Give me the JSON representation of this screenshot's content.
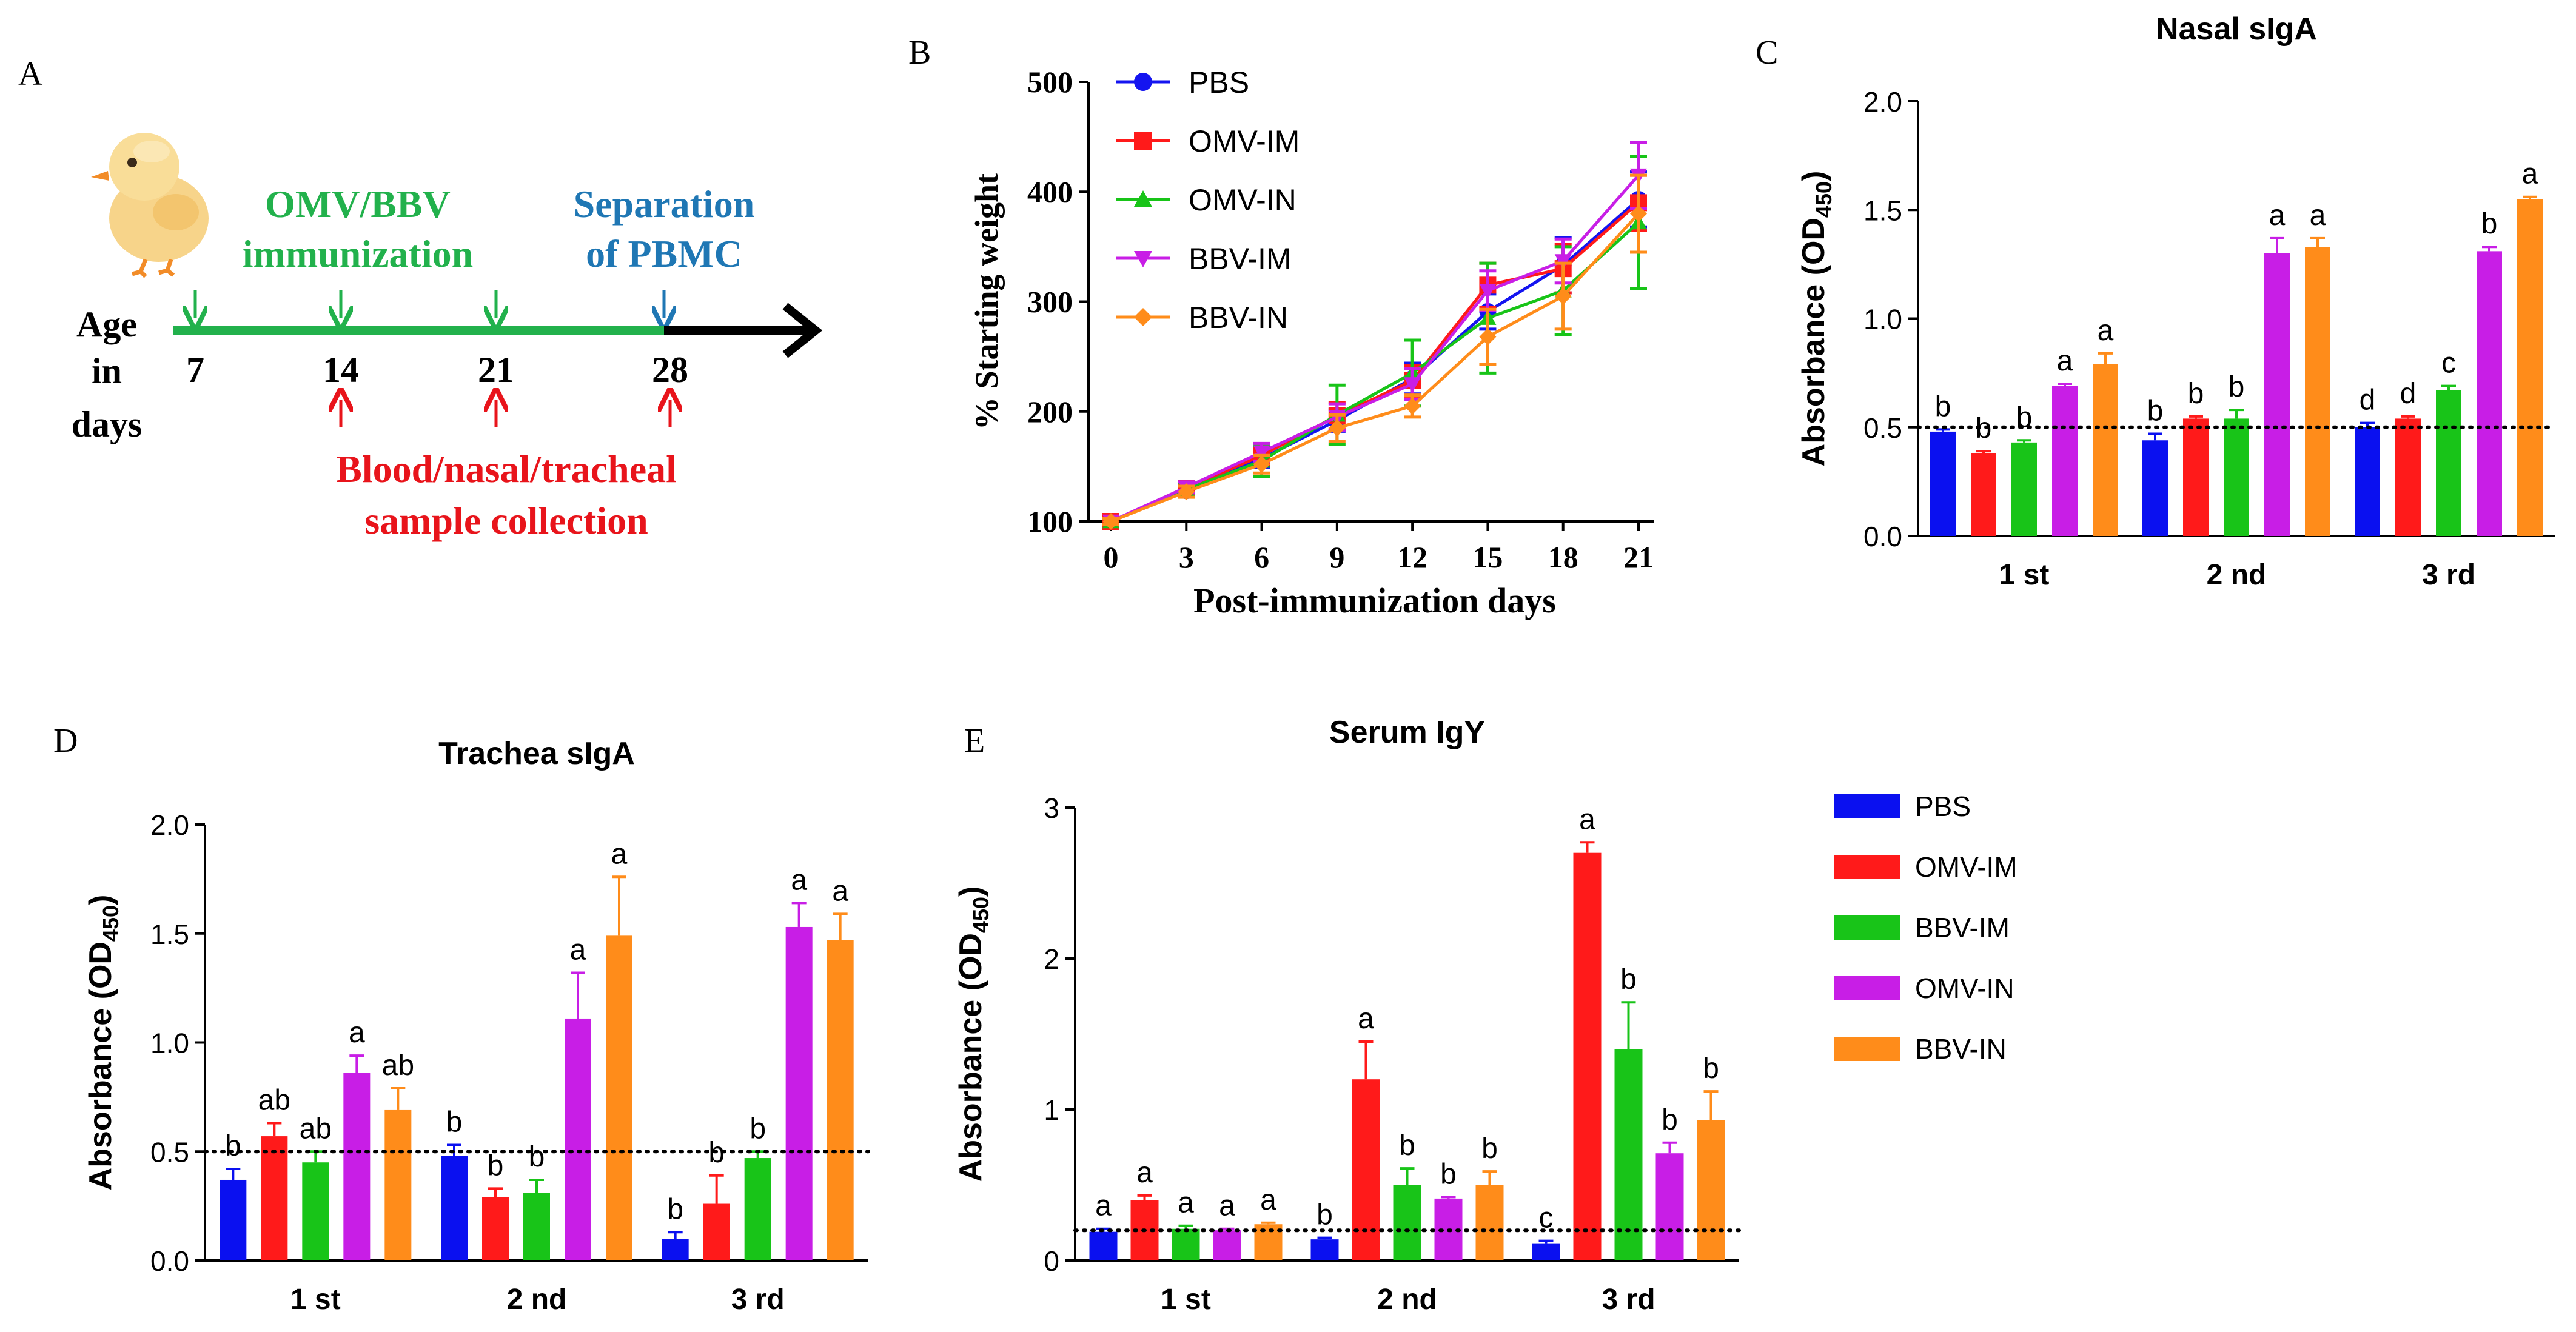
{
  "panel_labels": {
    "a": "A",
    "b": "B",
    "c": "C",
    "d": "D",
    "e": "E"
  },
  "timeline": {
    "immunization_label_line1": "OMV/BBV",
    "immunization_label_line2": "immunization",
    "separation_label_line1": "Separation",
    "separation_label_line2": "of PBMC",
    "age_label_line1": "Age",
    "age_label_line2": "in",
    "age_label_line3": "days",
    "days": [
      "7",
      "14",
      "21",
      "28"
    ],
    "collection_label_line1": "Blood/nasal/tracheal",
    "collection_label_line2": "sample collection",
    "colors": {
      "green": "#22b14c",
      "blue": "#1f77b4",
      "red": "#e8141b",
      "black": "#000000"
    }
  },
  "legend": {
    "items": [
      {
        "label": "PBS",
        "color": "#0a10f0"
      },
      {
        "label": "OMV-IM",
        "color": "#ff1a1a"
      },
      {
        "label": "BBV-IM",
        "color": "#18c418"
      },
      {
        "label": "OMV-IN",
        "color": "#c81ee6"
      },
      {
        "label": "BBV-IN",
        "color": "#ff8c1a"
      }
    ]
  },
  "chart_data": [
    {
      "id": "B",
      "type": "line",
      "title": "",
      "xlabel": "Post-immunization days",
      "ylabel": "% Starting weight",
      "x": [
        0,
        3,
        6,
        9,
        12,
        15,
        18,
        21
      ],
      "xlim": [
        0,
        21
      ],
      "ylim": [
        100,
        500
      ],
      "yticks": [
        100,
        200,
        300,
        400,
        500
      ],
      "series": [
        {
          "name": "PBS",
          "color": "#1414f0",
          "marker": "circle",
          "values": [
            100,
            128,
            157,
            192,
            230,
            291,
            333,
            393
          ],
          "errors": [
            3,
            5,
            8,
            10,
            14,
            16,
            25,
            25
          ]
        },
        {
          "name": "OMV-IM",
          "color": "#ff1a1a",
          "marker": "square",
          "values": [
            100,
            130,
            160,
            196,
            228,
            315,
            330,
            390
          ],
          "errors": [
            3,
            5,
            8,
            12,
            14,
            20,
            22,
            25
          ]
        },
        {
          "name": "OMV-IN",
          "color": "#18c418",
          "marker": "triangle-up",
          "values": [
            100,
            129,
            155,
            197,
            235,
            285,
            310,
            372
          ],
          "errors": [
            3,
            6,
            14,
            27,
            30,
            50,
            40,
            60
          ]
        },
        {
          "name": "BBV-IM",
          "color": "#c81ee6",
          "marker": "triangle-down",
          "values": [
            100,
            131,
            163,
            195,
            225,
            310,
            337,
            415
          ],
          "errors": [
            3,
            5,
            8,
            12,
            14,
            18,
            20,
            30
          ]
        },
        {
          "name": "BBV-IN",
          "color": "#ff8c1a",
          "marker": "diamond",
          "values": [
            100,
            127,
            152,
            185,
            205,
            268,
            305,
            380
          ],
          "errors": [
            3,
            5,
            8,
            12,
            10,
            25,
            30,
            35
          ]
        }
      ]
    },
    {
      "id": "C",
      "type": "bar",
      "title": "Nasal sIgA",
      "ylabel_main": "Absorbance (OD",
      "ylabel_sub": "450",
      "ylabel_close": ")",
      "categories": [
        "1 st",
        "2 nd",
        "3 rd"
      ],
      "ylim": [
        0,
        2.0
      ],
      "yticks": [
        "0.0",
        "0.5",
        "1.0",
        "1.5",
        "2.0"
      ],
      "cutoff": 0.5,
      "series": [
        {
          "name": "PBS",
          "values": [
            0.48,
            0.44,
            0.5
          ],
          "errors": [
            0.01,
            0.03,
            0.02
          ],
          "letters": [
            "b",
            "b",
            "d"
          ]
        },
        {
          "name": "OMV-IM",
          "values": [
            0.38,
            0.54,
            0.54
          ],
          "errors": [
            0.01,
            0.01,
            0.01
          ],
          "letters": [
            "b",
            "b",
            "d"
          ]
        },
        {
          "name": "BBV-IM",
          "values": [
            0.43,
            0.54,
            0.67
          ],
          "errors": [
            0.01,
            0.04,
            0.02
          ],
          "letters": [
            "b",
            "b",
            "c"
          ]
        },
        {
          "name": "OMV-IN",
          "values": [
            0.69,
            1.3,
            1.31
          ],
          "errors": [
            0.01,
            0.07,
            0.02
          ],
          "letters": [
            "a",
            "a",
            "b"
          ]
        },
        {
          "name": "BBV-IN",
          "values": [
            0.79,
            1.33,
            1.55
          ],
          "errors": [
            0.05,
            0.04,
            0.01
          ],
          "letters": [
            "a",
            "a",
            "a"
          ]
        }
      ]
    },
    {
      "id": "D",
      "type": "bar",
      "title": "Trachea sIgA",
      "ylabel_main": "Absorbance (OD",
      "ylabel_sub": "450",
      "ylabel_close": ")",
      "categories": [
        "1 st",
        "2 nd",
        "3 rd"
      ],
      "ylim": [
        0,
        2.0
      ],
      "yticks": [
        "0.0",
        "0.5",
        "1.0",
        "1.5",
        "2.0"
      ],
      "cutoff": 0.5,
      "series": [
        {
          "name": "PBS",
          "values": [
            0.37,
            0.48,
            0.1
          ],
          "errors": [
            0.05,
            0.05,
            0.03
          ],
          "letters": [
            "b",
            "b",
            "b"
          ]
        },
        {
          "name": "OMV-IM",
          "values": [
            0.57,
            0.29,
            0.26
          ],
          "errors": [
            0.06,
            0.04,
            0.13
          ],
          "letters": [
            "ab",
            "b",
            "b"
          ]
        },
        {
          "name": "BBV-IM",
          "values": [
            0.45,
            0.31,
            0.47
          ],
          "errors": [
            0.05,
            0.06,
            0.03
          ],
          "letters": [
            "ab",
            "b",
            "b"
          ]
        },
        {
          "name": "OMV-IN",
          "values": [
            0.86,
            1.11,
            1.53
          ],
          "errors": [
            0.08,
            0.21,
            0.11
          ],
          "letters": [
            "a",
            "a",
            "a"
          ]
        },
        {
          "name": "BBV-IN",
          "values": [
            0.69,
            1.49,
            1.47
          ],
          "errors": [
            0.1,
            0.27,
            0.12
          ],
          "letters": [
            "ab",
            "a",
            "a"
          ]
        }
      ]
    },
    {
      "id": "E",
      "type": "bar",
      "title": "Serum IgY",
      "ylabel_main": "Absorbance (OD",
      "ylabel_sub": "450",
      "ylabel_close": ")",
      "categories": [
        "1 st",
        "2 nd",
        "3 rd"
      ],
      "ylim": [
        0,
        3
      ],
      "yticks": [
        "0",
        "1",
        "2",
        "3"
      ],
      "cutoff": 0.2,
      "series": [
        {
          "name": "PBS",
          "values": [
            0.19,
            0.14,
            0.11
          ],
          "errors": [
            0.02,
            0.01,
            0.02
          ],
          "letters": [
            "a",
            "b",
            "c"
          ]
        },
        {
          "name": "OMV-IM",
          "values": [
            0.4,
            1.2,
            2.7
          ],
          "errors": [
            0.03,
            0.25,
            0.07
          ],
          "letters": [
            "a",
            "a",
            "a"
          ]
        },
        {
          "name": "BBV-IM",
          "values": [
            0.21,
            0.5,
            1.4
          ],
          "errors": [
            0.02,
            0.11,
            0.31
          ],
          "letters": [
            "a",
            "b",
            "b"
          ]
        },
        {
          "name": "OMV-IN",
          "values": [
            0.2,
            0.41,
            0.71
          ],
          "errors": [
            0.01,
            0.01,
            0.07
          ],
          "letters": [
            "a",
            "b",
            "b"
          ]
        },
        {
          "name": "BBV-IN",
          "values": [
            0.24,
            0.5,
            0.93
          ],
          "errors": [
            0.01,
            0.09,
            0.19
          ],
          "letters": [
            "a",
            "b",
            "b"
          ]
        }
      ]
    }
  ]
}
